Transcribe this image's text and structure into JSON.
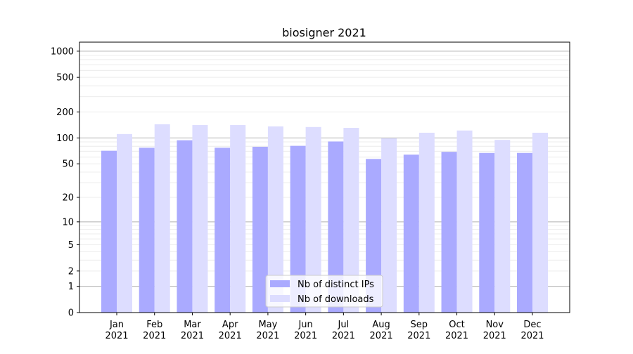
{
  "chart_data": {
    "type": "bar",
    "title": "biosigner 2021",
    "xlabel": "",
    "ylabel": "",
    "y_scale": "log10(y+1)",
    "ylim": [
      0,
      1270
    ],
    "grid": "y major and minor",
    "legend_position": "lower center",
    "categories": [
      "Jan\n2021",
      "Feb\n2021",
      "Mar\n2021",
      "Apr\n2021",
      "May\n2021",
      "Jun\n2021",
      "Jul\n2021",
      "Aug\n2021",
      "Sep\n2021",
      "Oct\n2021",
      "Nov\n2021",
      "Dec\n2021"
    ],
    "y_ticks": [
      0,
      1,
      2,
      5,
      10,
      20,
      50,
      100,
      200,
      500,
      1000
    ],
    "series": [
      {
        "name": "Nb of distinct IPs",
        "color": "#aaaaff",
        "values": [
          71,
          77,
          94,
          77,
          79,
          81,
          91,
          57,
          64,
          69,
          67,
          67
        ]
      },
      {
        "name": "Nb of downloads",
        "color": "#ddddff",
        "values": [
          111,
          144,
          141,
          141,
          136,
          134,
          131,
          99,
          115,
          122,
          95,
          115
        ]
      }
    ]
  }
}
